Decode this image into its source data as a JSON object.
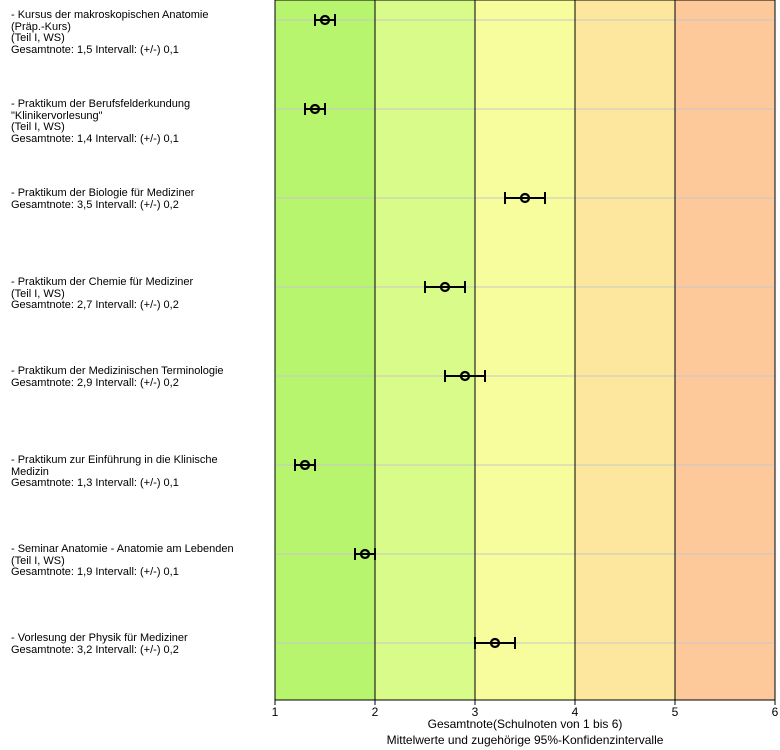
{
  "chart_data": {
    "type": "scatter",
    "xlabel": "Gesamtnote(Schulnoten von 1 bis 6)",
    "subtitle": "Mittelwerte und zugehörige 95%-Konfidenzintervalle",
    "xlim": [
      1,
      6
    ],
    "x_ticks": [
      "1",
      "2",
      "3",
      "4",
      "5",
      "6"
    ],
    "background_bands": [
      {
        "from": 1,
        "to": 2,
        "color": "#b8f56e"
      },
      {
        "from": 2,
        "to": 3,
        "color": "#d8fb8a"
      },
      {
        "from": 3,
        "to": 4,
        "color": "#f7fc9c"
      },
      {
        "from": 4,
        "to": 5,
        "color": "#fde79f"
      },
      {
        "from": 5,
        "to": 6,
        "color": "#fdc89a"
      }
    ],
    "grid": true,
    "items": [
      {
        "label": "- Kursus der makroskopischen Anatomie\n(Präp.-Kurs)\n(Teil I, WS)\nGesamtnote: 1,5 Intervall: (+/-) 0,1",
        "mean": 1.5,
        "ci": 0.1
      },
      {
        "label": "- Praktikum der Berufsfelderkundung\n\"Klinikervorlesung\"\n(Teil I, WS)\nGesamtnote: 1,4 Intervall: (+/-) 0,1",
        "mean": 1.4,
        "ci": 0.1
      },
      {
        "label": "- Praktikum der Biologie für Mediziner\nGesamtnote: 3,5 Intervall: (+/-) 0,2",
        "mean": 3.5,
        "ci": 0.2
      },
      {
        "label": "- Praktikum der Chemie für Mediziner\n(Teil I, WS)\nGesamtnote: 2,7 Intervall: (+/-) 0,2",
        "mean": 2.7,
        "ci": 0.2
      },
      {
        "label": "- Praktikum der Medizinischen Terminologie\nGesamtnote: 2,9 Intervall: (+/-) 0,2",
        "mean": 2.9,
        "ci": 0.2
      },
      {
        "label": "- Praktikum zur Einführung in die Klinische\nMedizin\nGesamtnote: 1,3 Intervall: (+/-) 0,1",
        "mean": 1.3,
        "ci": 0.1
      },
      {
        "label": "- Seminar Anatomie - Anatomie am Lebenden\n(Teil I, WS)\nGesamtnote: 1,9 Intervall: (+/-) 0,1",
        "mean": 1.9,
        "ci": 0.1
      },
      {
        "label": "- Vorlesung der Physik für Mediziner\nGesamtnote: 3,2 Intervall: (+/-) 0,2",
        "mean": 3.2,
        "ci": 0.2
      }
    ]
  }
}
